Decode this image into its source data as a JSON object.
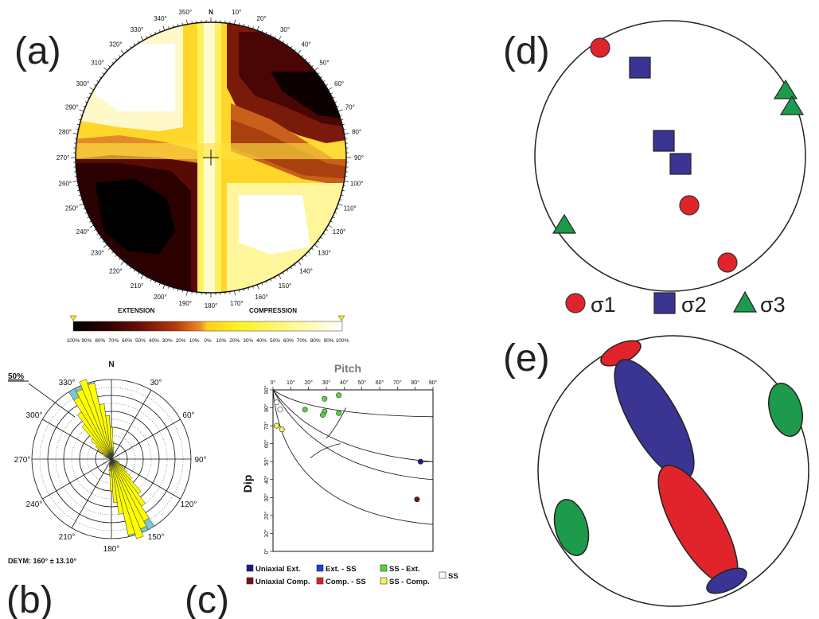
{
  "panel_labels": {
    "a": "(a)",
    "b": "(b)",
    "c": "(c)",
    "d": "(d)",
    "e": "(e)"
  },
  "colors": {
    "sigma1": "#e1242b",
    "sigma2": "#3a3592",
    "sigma3": "#1d9a4b",
    "rose_fill": "#ffff00",
    "rose_dev": "#7fc6d3",
    "pitch_green": "#54d63a",
    "pitch_yellow": "#f7f15a",
    "pitch_blue": "#1a1a8f",
    "pitch_darkred": "#7a1010"
  },
  "panel_a": {
    "north": "N",
    "azimuth_labels": [
      "10°",
      "20°",
      "30°",
      "40°",
      "50°",
      "60°",
      "70°",
      "80°",
      "90°",
      "100°",
      "110°",
      "120°",
      "130°",
      "140°",
      "150°",
      "160°",
      "170°",
      "180°",
      "190°",
      "200°",
      "210°",
      "220°",
      "230°",
      "240°",
      "250°",
      "260°",
      "270°",
      "280°",
      "290°",
      "300°",
      "310°",
      "320°",
      "330°",
      "340°",
      "350°"
    ],
    "colorbar": {
      "extension_label": "EXTENSION",
      "compression_label": "COMPRESSION",
      "ticks": [
        "100%",
        "90%",
        "80%",
        "70%",
        "60%",
        "50%",
        "40%",
        "30%",
        "20%",
        "10%",
        "0%",
        "10%",
        "20%",
        "30%",
        "40%",
        "50%",
        "60%",
        "70%",
        "80%",
        "90%",
        "100%"
      ]
    }
  },
  "panel_b": {
    "scale_label": "50%",
    "north": "N",
    "direction_labels": [
      "30°",
      "60°",
      "90°",
      "120°",
      "150°",
      "180°",
      "210°",
      "240°",
      "270°",
      "300°",
      "330°"
    ],
    "caption": "DEYM: 160° ± 13.10°"
  },
  "panel_c": {
    "chart_data": {
      "type": "scatter",
      "title": "Pitch",
      "xlabel": "Pitch",
      "ylabel": "Dip",
      "xlim": [
        0,
        90
      ],
      "ylim": [
        0,
        90
      ],
      "x_ticks": [
        "0°",
        "10°",
        "20°",
        "30°",
        "40°",
        "50°",
        "60°",
        "70°",
        "80°",
        "90°"
      ],
      "y_ticks": [
        "0°",
        "10°",
        "20°",
        "30°",
        "40°",
        "50°",
        "60°",
        "70°",
        "80°",
        "90°"
      ],
      "series": [
        {
          "name": "Uniaxial Ext.",
          "color": "#1a1a8f",
          "points": [
            [
              83,
              50
            ]
          ]
        },
        {
          "name": "Uniaxial Comp.",
          "color": "#7a1010",
          "points": [
            [
              81,
              29
            ]
          ]
        },
        {
          "name": "SS - Ext.",
          "color": "#54d63a",
          "points": [
            [
              37,
              87
            ],
            [
              29,
              85
            ],
            [
              29,
              78
            ],
            [
              28,
              76
            ],
            [
              37,
              77
            ],
            [
              18,
              79
            ]
          ]
        },
        {
          "name": "SS - Comp.",
          "color": "#f7f15a",
          "points": [
            [
              2,
              70
            ],
            [
              5,
              68
            ]
          ]
        },
        {
          "name": "SS",
          "color": "#ffffff",
          "points": [
            [
              2,
              83
            ],
            [
              4,
              79
            ]
          ]
        }
      ]
    },
    "legend": [
      {
        "label": "Uniaxial Ext.",
        "color": "#1a1a8f"
      },
      {
        "label": "Uniaxial Comp.",
        "color": "#7a1010"
      },
      {
        "label": "Ext. - SS",
        "color": "#1f3fd6"
      },
      {
        "label": "Comp. - SS",
        "color": "#e02020"
      },
      {
        "label": "SS - Ext.",
        "color": "#54d63a"
      },
      {
        "label": "SS - Comp.",
        "color": "#f7f15a"
      },
      {
        "label": "SS",
        "color": "#ffffff"
      }
    ]
  },
  "panel_d": {
    "legend": [
      {
        "symbol": "circle",
        "label": "σ1"
      },
      {
        "symbol": "square",
        "label": "σ2"
      },
      {
        "symbol": "triangle",
        "label": "σ3"
      }
    ]
  }
}
